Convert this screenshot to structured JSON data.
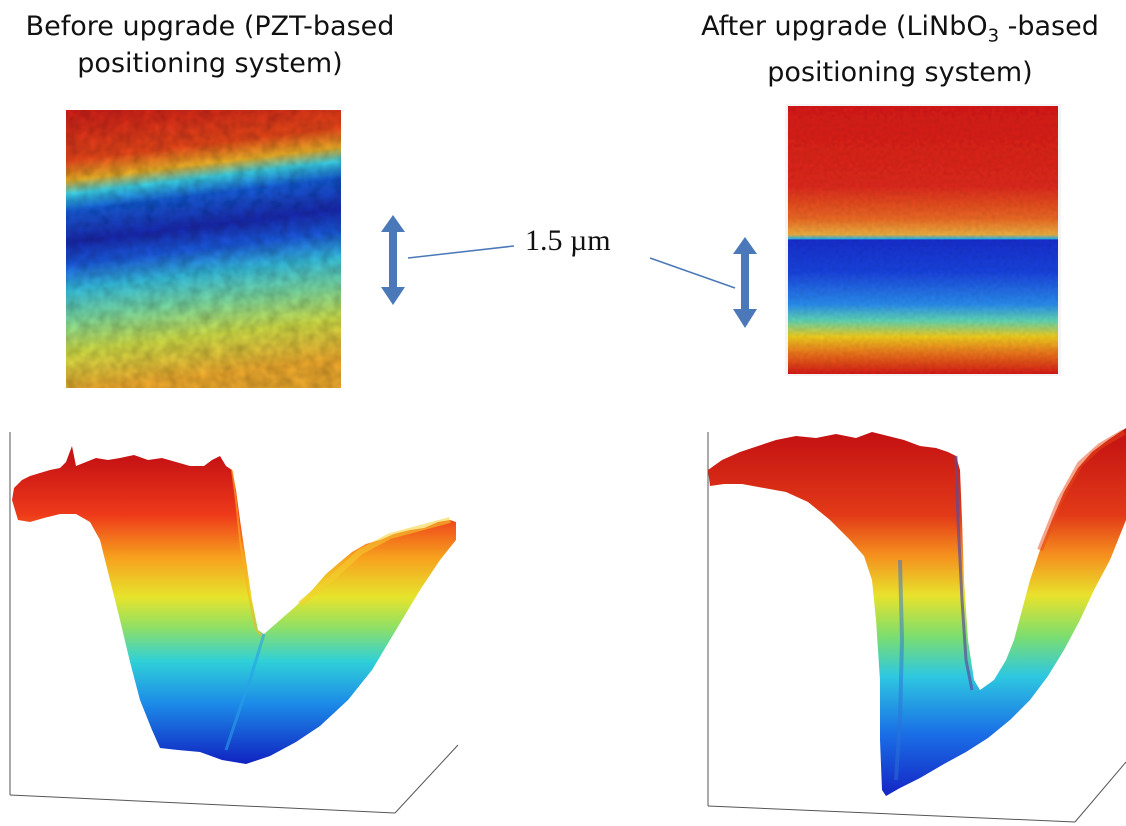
{
  "left_panel": {
    "title_line1": "Before upgrade (PZT-based",
    "title_line2": "positioning system)"
  },
  "right_panel": {
    "title_prefix": "After upgrade (LiNbO",
    "title_subscript": "3",
    "title_suffix": " -based",
    "title_line2": "positioning system)"
  },
  "scale_label": "1.5 µm",
  "colors": {
    "arrow": "#4a78b8",
    "leader_line": "#4a78b8",
    "jet_red": "#d7191c",
    "jet_blue": "#1a33d0"
  }
}
